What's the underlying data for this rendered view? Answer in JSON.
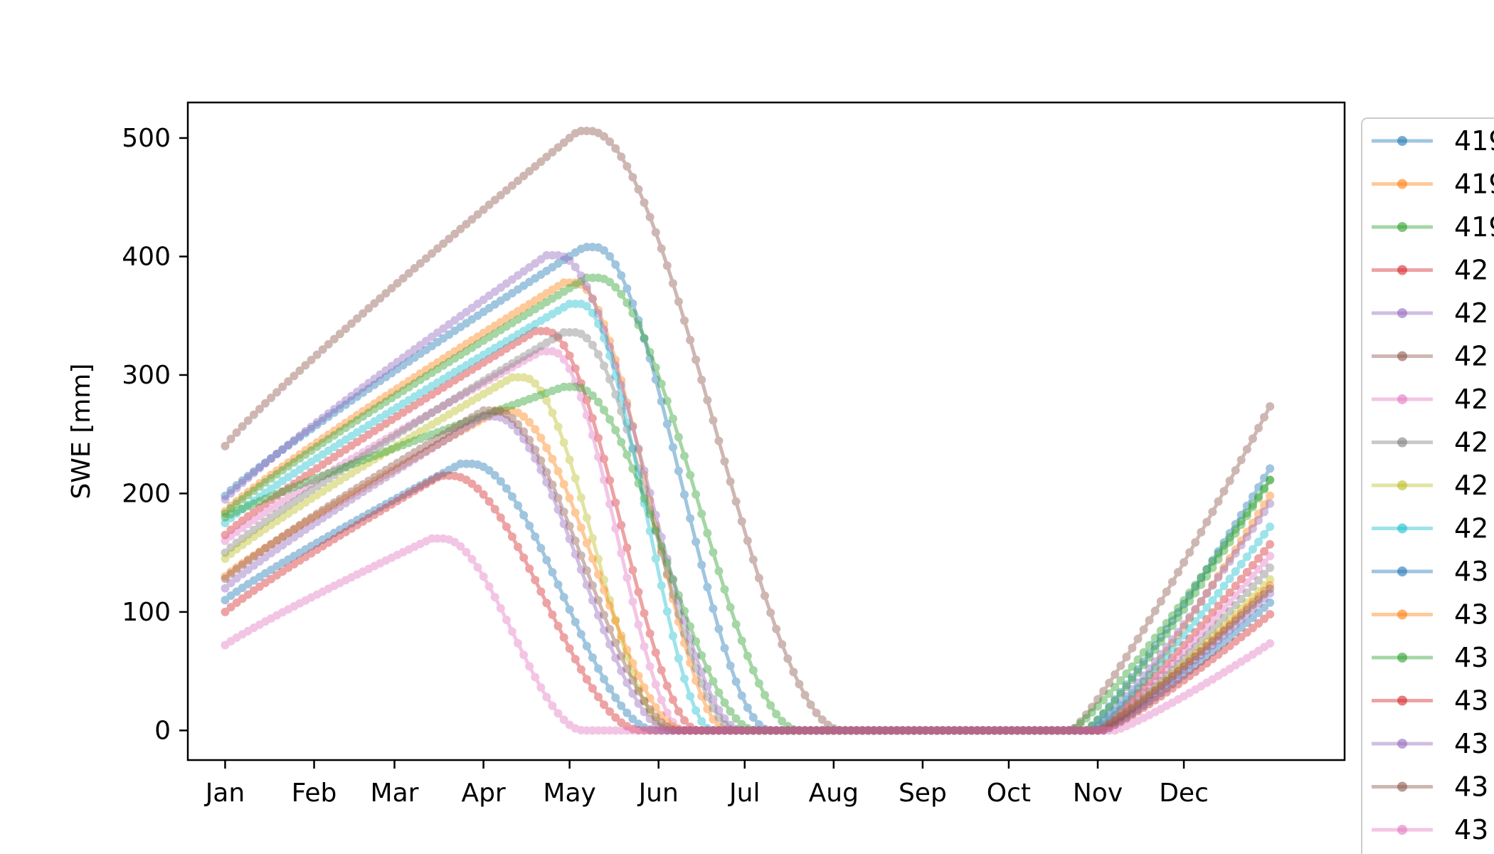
{
  "chart_data": {
    "type": "line",
    "title": "",
    "xlabel": "",
    "ylabel": "SWE [mm]",
    "x_ticks": [
      "Jan",
      "Feb",
      "Mar",
      "Apr",
      "May",
      "Jun",
      "Jul",
      "Aug",
      "Sep",
      "Oct",
      "Nov",
      "Dec"
    ],
    "y_ticks": [
      0,
      100,
      200,
      300,
      400,
      500
    ],
    "ylim": [
      -25,
      530
    ],
    "xlim_days": [
      -13,
      390
    ],
    "grid": false,
    "legend_placement": "outside-right",
    "series_style": "line-with-circle-markers, alpha 0.35",
    "series": [
      {
        "name": "419",
        "color": "#1f77b4",
        "base": 198,
        "peak": 408,
        "peak_day": 125,
        "melt_end": 190,
        "onset": 300,
        "end_value": 225
      },
      {
        "name": "419",
        "color": "#ff7f0e",
        "base": 185,
        "peak": 378,
        "peak_day": 118,
        "melt_end": 175,
        "onset": 305,
        "end_value": 202
      },
      {
        "name": "419",
        "color": "#2ca02c",
        "base": 183,
        "peak": 382,
        "peak_day": 126,
        "melt_end": 200,
        "onset": 300,
        "end_value": 215
      },
      {
        "name": "42",
        "color": "#d62728",
        "base": 165,
        "peak": 337,
        "peak_day": 108,
        "melt_end": 165,
        "onset": 303,
        "end_value": 160
      },
      {
        "name": "42",
        "color": "#9467bd",
        "base": 195,
        "peak": 401,
        "peak_day": 112,
        "melt_end": 180,
        "onset": 302,
        "end_value": 195
      },
      {
        "name": "42",
        "color": "#8c564b",
        "base": 240,
        "peak": 506,
        "peak_day": 123,
        "melt_end": 215,
        "onset": 295,
        "end_value": 278
      },
      {
        "name": "42",
        "color": "#e377c2",
        "base": 160,
        "peak": 320,
        "peak_day": 110,
        "melt_end": 160,
        "onset": 304,
        "end_value": 150
      },
      {
        "name": "42",
        "color": "#7f7f7f",
        "base": 150,
        "peak": 336,
        "peak_day": 118,
        "melt_end": 178,
        "onset": 305,
        "end_value": 140
      },
      {
        "name": "42",
        "color": "#bcbd22",
        "base": 145,
        "peak": 298,
        "peak_day": 100,
        "melt_end": 155,
        "onset": 305,
        "end_value": 130
      },
      {
        "name": "42",
        "color": "#17becf",
        "base": 175,
        "peak": 360,
        "peak_day": 120,
        "melt_end": 170,
        "onset": 302,
        "end_value": 175
      },
      {
        "name": "43",
        "color": "#1f77b4",
        "base": 110,
        "peak": 225,
        "peak_day": 82,
        "melt_end": 150,
        "onset": 306,
        "end_value": 110
      },
      {
        "name": "43",
        "color": "#ff7f0e",
        "base": 130,
        "peak": 270,
        "peak_day": 95,
        "melt_end": 160,
        "onset": 305,
        "end_value": 125
      },
      {
        "name": "43",
        "color": "#2ca02c",
        "base": 180,
        "peak": 290,
        "peak_day": 118,
        "melt_end": 185,
        "onset": 295,
        "end_value": 215
      },
      {
        "name": "43",
        "color": "#d62728",
        "base": 100,
        "peak": 215,
        "peak_day": 75,
        "melt_end": 145,
        "onset": 306,
        "end_value": 100
      },
      {
        "name": "43",
        "color": "#9467bd",
        "base": 120,
        "peak": 265,
        "peak_day": 90,
        "melt_end": 155,
        "onset": 305,
        "end_value": 118
      },
      {
        "name": "43",
        "color": "#8c564b",
        "base": 128,
        "peak": 270,
        "peak_day": 90,
        "melt_end": 158,
        "onset": 304,
        "end_value": 122
      },
      {
        "name": "43",
        "color": "#e377c2",
        "base": 72,
        "peak": 162,
        "peak_day": 72,
        "melt_end": 125,
        "onset": 310,
        "end_value": 75
      }
    ]
  }
}
